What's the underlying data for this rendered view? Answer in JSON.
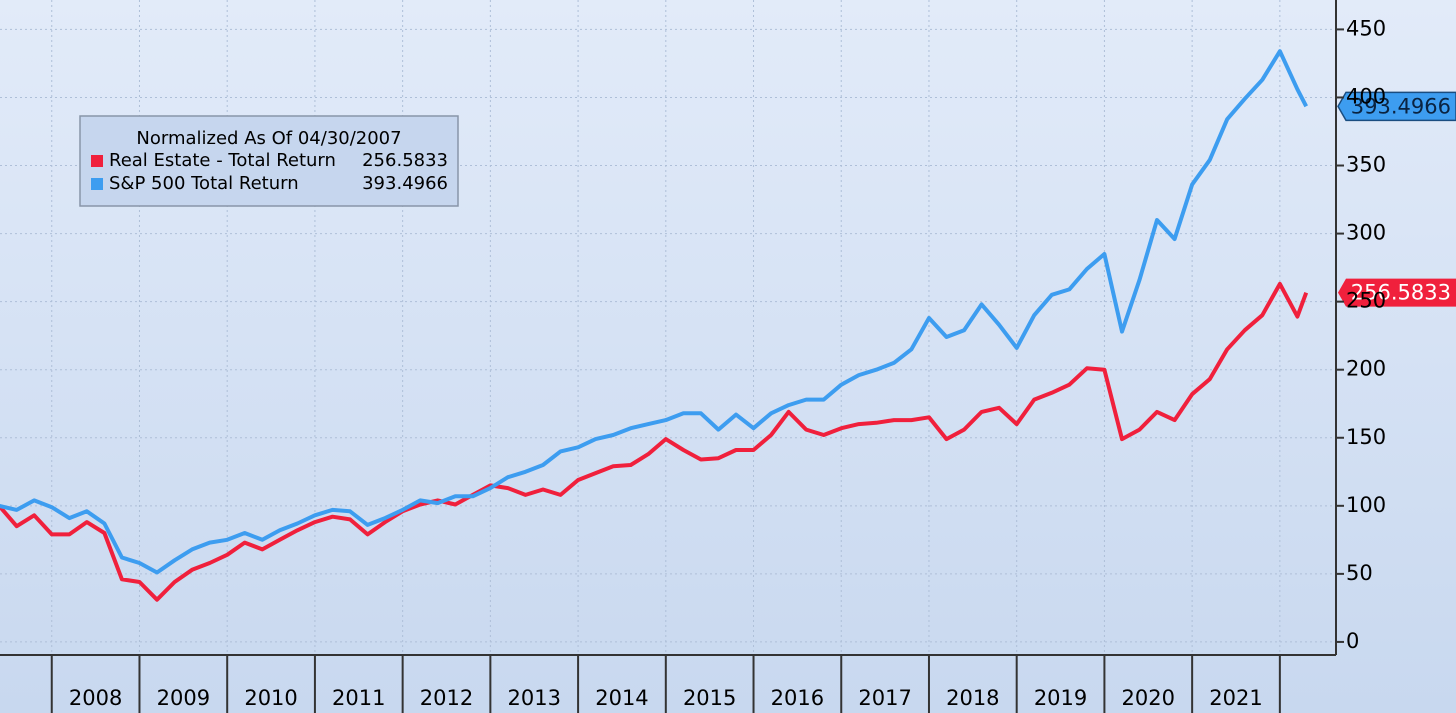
{
  "chart_data": {
    "type": "line",
    "legend_title": "Normalized As Of 04/30/2007",
    "x": [
      2007.4,
      2007.6,
      2007.8,
      2008.0,
      2008.2,
      2008.4,
      2008.6,
      2008.8,
      2009.0,
      2009.2,
      2009.4,
      2009.6,
      2009.8,
      2010.0,
      2010.2,
      2010.4,
      2010.6,
      2010.8,
      2011.0,
      2011.2,
      2011.4,
      2011.6,
      2011.8,
      2012.0,
      2012.2,
      2012.4,
      2012.6,
      2012.8,
      2013.0,
      2013.2,
      2013.4,
      2013.6,
      2013.8,
      2014.0,
      2014.2,
      2014.4,
      2014.6,
      2014.8,
      2015.0,
      2015.2,
      2015.4,
      2015.6,
      2015.8,
      2016.0,
      2016.2,
      2016.4,
      2016.6,
      2016.8,
      2017.0,
      2017.2,
      2017.4,
      2017.6,
      2017.8,
      2018.0,
      2018.2,
      2018.4,
      2018.6,
      2018.8,
      2019.0,
      2019.2,
      2019.4,
      2019.6,
      2019.8,
      2020.0,
      2020.2,
      2020.4,
      2020.6,
      2020.8,
      2021.0,
      2021.2,
      2021.4,
      2021.6,
      2021.8,
      2022.0,
      2022.2,
      2022.3
    ],
    "series": [
      {
        "name": "Real Estate - Total Return",
        "color": "#f0203c",
        "values": [
          100,
          85,
          93,
          79,
          79,
          88,
          80,
          46,
          44,
          31,
          44,
          53,
          58,
          64,
          73,
          68,
          75,
          82,
          88,
          92,
          90,
          79,
          88,
          96,
          101,
          104,
          101,
          108,
          115,
          113,
          108,
          112,
          108,
          119,
          124,
          129,
          130,
          138,
          149,
          141,
          134,
          135,
          141,
          141,
          152,
          169,
          156,
          152,
          157,
          160,
          161,
          163,
          163,
          165,
          149,
          156,
          169,
          172,
          160,
          178,
          183,
          189,
          201,
          200,
          149,
          156,
          169,
          163,
          182,
          193,
          215,
          229,
          240,
          263,
          239,
          256.5833
        ]
      },
      {
        "name": "S&P 500 Total Return",
        "color": "#3d9df0",
        "values": [
          100,
          97,
          104,
          99,
          91,
          96,
          87,
          62,
          58,
          51,
          60,
          68,
          73,
          75,
          80,
          75,
          82,
          87,
          93,
          97,
          96,
          86,
          91,
          97,
          104,
          102,
          107,
          107,
          113,
          121,
          125,
          130,
          140,
          143,
          149,
          152,
          157,
          160,
          163,
          168,
          168,
          156,
          167,
          157,
          168,
          174,
          178,
          178,
          189,
          196,
          200,
          205,
          215,
          238,
          224,
          229,
          248,
          233,
          216,
          240,
          255,
          259,
          274,
          285,
          228,
          266,
          310,
          296,
          336,
          354,
          384,
          399,
          413,
          434,
          406,
          393.4966
        ]
      }
    ],
    "xlim": [
      2007.41,
      2022.64
    ],
    "xticks": [
      2008,
      2009,
      2010,
      2011,
      2012,
      2013,
      2014,
      2015,
      2016,
      2017,
      2018,
      2019,
      2020,
      2021
    ],
    "ylim": [
      -9.6,
      471.6
    ],
    "yticks": [
      0,
      50,
      100,
      150,
      200,
      250,
      300,
      350,
      400,
      450
    ],
    "grid": true
  }
}
